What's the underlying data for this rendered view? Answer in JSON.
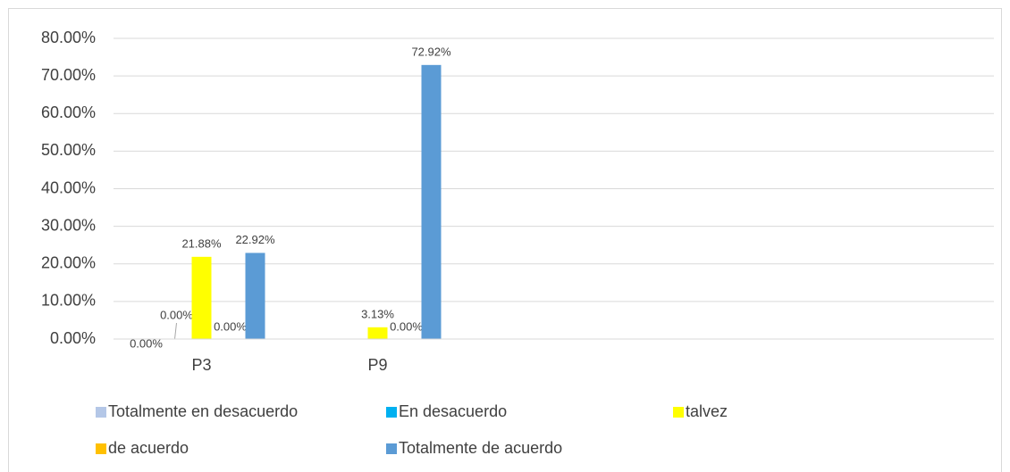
{
  "chart_data": {
    "type": "bar",
    "categories": [
      "P3",
      "P9",
      null,
      null,
      null
    ],
    "series": [
      {
        "name": "Totalmente en desacuerdo",
        "color": "#b4c7e7",
        "values": [
          0,
          null,
          null,
          null,
          null
        ],
        "value_labels": [
          "0.00%",
          null,
          null,
          null,
          null
        ]
      },
      {
        "name": "En desacuerdo",
        "color": "#00b0f0",
        "values": [
          0,
          null,
          null,
          null,
          null
        ],
        "value_labels": [
          "0.00%",
          null,
          null,
          null,
          null
        ]
      },
      {
        "name": "talvez",
        "color": "#ffff00",
        "values": [
          21.88,
          3.13,
          null,
          null,
          null
        ],
        "value_labels": [
          "21.88%",
          "3.13%",
          null,
          null,
          null
        ]
      },
      {
        "name": "de acuerdo",
        "color": "#ffc000",
        "values": [
          0,
          0,
          null,
          null,
          null
        ],
        "value_labels": [
          "0.00%",
          "0.00%",
          null,
          null,
          null
        ]
      },
      {
        "name": "Totalmente de acuerdo",
        "color": "#5b9bd5",
        "values": [
          22.92,
          72.92,
          null,
          null,
          null
        ],
        "value_labels": [
          "22.92%",
          "72.92%",
          null,
          null,
          null
        ]
      }
    ],
    "ylim": [
      0,
      80
    ],
    "yticks": [
      {
        "value": 0,
        "label": "0.00%"
      },
      {
        "value": 10,
        "label": "10.00%"
      },
      {
        "value": 20,
        "label": "20.00%"
      },
      {
        "value": 30,
        "label": "30.00%"
      },
      {
        "value": 40,
        "label": "40.00%"
      },
      {
        "value": 50,
        "label": "50.00%"
      },
      {
        "value": 60,
        "label": "60.00%"
      },
      {
        "value": 70,
        "label": "70.00%"
      },
      {
        "value": 80,
        "label": "80.00%"
      }
    ],
    "grid": true,
    "legend": "bottom"
  }
}
